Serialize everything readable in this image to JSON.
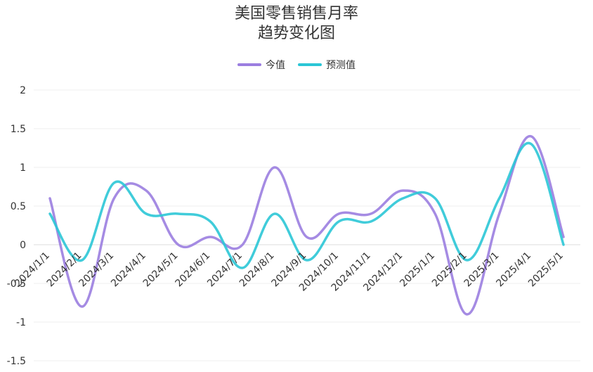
{
  "chart_data": {
    "type": "line",
    "title": "美国零售销售月率",
    "subtitle": "趋势变化图",
    "categories": [
      "2024/1/1",
      "2024/2/1",
      "2024/3/1",
      "2024/4/1",
      "2024/5/1",
      "2024/6/1",
      "2024/7/1",
      "2024/8/1",
      "2024/9/1",
      "2024/10/1",
      "2024/11/1",
      "2024/12/1",
      "2025/1/1",
      "2025/2/1",
      "2025/3/1",
      "2025/4/1",
      "2025/5/1"
    ],
    "series": [
      {
        "name": "今值",
        "values": [
          0.6,
          -0.8,
          0.6,
          0.7,
          0.0,
          0.1,
          0.0,
          1.0,
          0.1,
          0.4,
          0.4,
          0.7,
          0.4,
          -0.9,
          0.4,
          1.4,
          0.1
        ],
        "color": "#9b7ee0"
      },
      {
        "name": "预测值",
        "values": [
          0.4,
          -0.2,
          0.8,
          0.4,
          0.4,
          0.3,
          -0.3,
          0.4,
          -0.2,
          0.3,
          0.3,
          0.6,
          0.6,
          -0.2,
          0.6,
          1.3,
          0.0
        ],
        "color": "#2bc6d6"
      }
    ],
    "yticks": [
      2,
      1.5,
      1,
      0.5,
      0,
      -0.5,
      -1,
      -1.5
    ],
    "ylim": [
      -1.5,
      2
    ],
    "grid": true,
    "legend": "top-center"
  }
}
